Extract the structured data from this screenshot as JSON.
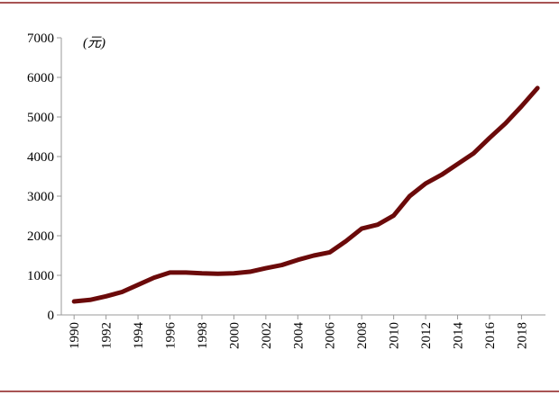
{
  "chart_data": {
    "type": "line",
    "annotation": "(元)",
    "x": [
      1990,
      1991,
      1992,
      1993,
      1994,
      1995,
      1996,
      1997,
      1998,
      1999,
      2000,
      2001,
      2002,
      2003,
      2004,
      2005,
      2006,
      2007,
      2008,
      2009,
      2010,
      2011,
      2012,
      2013,
      2014,
      2015,
      2016,
      2017,
      2018,
      2019
    ],
    "values": [
      340,
      380,
      470,
      580,
      760,
      940,
      1070,
      1070,
      1050,
      1040,
      1050,
      1090,
      1180,
      1260,
      1390,
      1500,
      1580,
      1860,
      2180,
      2280,
      2510,
      3000,
      3320,
      3540,
      3810,
      4080,
      4470,
      4840,
      5270,
      5730
    ],
    "color": "#6b0a0a",
    "xlim": [
      1989.2,
      2019.5
    ],
    "xticks": [
      1990,
      1992,
      1994,
      1996,
      1998,
      2000,
      2002,
      2004,
      2006,
      2008,
      2010,
      2012,
      2014,
      2016,
      2018
    ],
    "ylim": [
      0,
      7000
    ],
    "yticks": [
      0,
      1000,
      2000,
      3000,
      4000,
      5000,
      6000,
      7000
    ]
  }
}
